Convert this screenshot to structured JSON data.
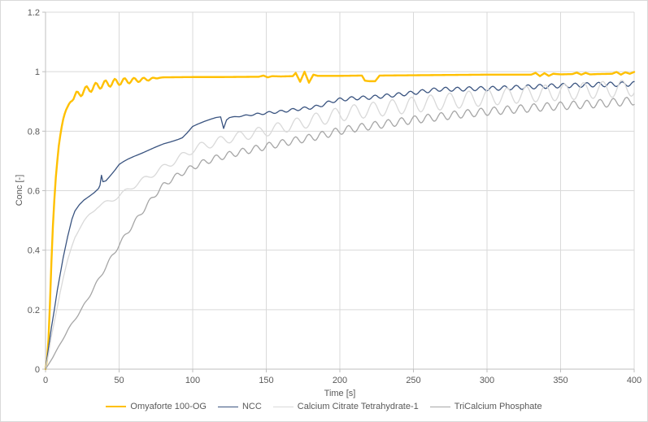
{
  "chart_data": {
    "type": "line",
    "title": "",
    "xlabel": "Time [s]",
    "ylabel": "Conc [-]",
    "xlim": [
      0,
      400
    ],
    "ylim": [
      0,
      1.2
    ],
    "grid": true,
    "legend_position": "bottom",
    "x_ticks": [
      {
        "v": 0,
        "label": "0"
      },
      {
        "v": 50,
        "label": "50"
      },
      {
        "v": 100,
        "label": "100"
      },
      {
        "v": 150,
        "label": "150"
      },
      {
        "v": 200,
        "label": "200"
      },
      {
        "v": 250,
        "label": "250"
      },
      {
        "v": 300,
        "label": "300"
      },
      {
        "v": 350,
        "label": "350"
      },
      {
        "v": 400,
        "label": "400"
      }
    ],
    "y_ticks": [
      {
        "v": 0,
        "label": "0"
      },
      {
        "v": 0.2,
        "label": "0.2"
      },
      {
        "v": 0.4,
        "label": "0.4"
      },
      {
        "v": 0.6,
        "label": "0.6"
      },
      {
        "v": 0.8,
        "label": "0.8"
      },
      {
        "v": 1,
        "label": "1"
      },
      {
        "v": 1.2,
        "label": "1.2"
      }
    ],
    "style": {
      "background": "#FFFFFF",
      "gridline_color": "#D9D9D9",
      "axis_color": "#BFBFBF",
      "text_color": "#595959"
    },
    "series": [
      {
        "name": "Omyaforte 100-OG",
        "color": "#FFC000",
        "width": 2.4,
        "oscillation": {
          "period": 6.5,
          "phase": 0,
          "amp": [
            [
              0,
              0
            ],
            [
              17,
              0
            ],
            [
              21,
              0.013
            ],
            [
              48,
              0.012
            ],
            [
              70,
              0.005
            ],
            [
              78,
              0
            ],
            [
              400,
              0
            ]
          ]
        },
        "points": [
          [
            0,
            0
          ],
          [
            1,
            0.03
          ],
          [
            2,
            0.1
          ],
          [
            3,
            0.22
          ],
          [
            4,
            0.36
          ],
          [
            5,
            0.48
          ],
          [
            6,
            0.57
          ],
          [
            7,
            0.645
          ],
          [
            8,
            0.7
          ],
          [
            9,
            0.75
          ],
          [
            10,
            0.785
          ],
          [
            11,
            0.815
          ],
          [
            12,
            0.84
          ],
          [
            13,
            0.858
          ],
          [
            14,
            0.872
          ],
          [
            15,
            0.882
          ],
          [
            16,
            0.892
          ],
          [
            18,
            0.905
          ],
          [
            20,
            0.916
          ],
          [
            23,
            0.927
          ],
          [
            26,
            0.935
          ],
          [
            30,
            0.943
          ],
          [
            34,
            0.95
          ],
          [
            38,
            0.956
          ],
          [
            42,
            0.96
          ],
          [
            46,
            0.963
          ],
          [
            50,
            0.966
          ],
          [
            55,
            0.969
          ],
          [
            60,
            0.971
          ],
          [
            65,
            0.973
          ],
          [
            70,
            0.975
          ],
          [
            75,
            0.978
          ],
          [
            80,
            0.981
          ],
          [
            100,
            0.982
          ],
          [
            120,
            0.982
          ],
          [
            145,
            0.983
          ],
          [
            148,
            0.987
          ],
          [
            151,
            0.981
          ],
          [
            154,
            0.985
          ],
          [
            160,
            0.984
          ],
          [
            168,
            0.985
          ],
          [
            170,
            0.996
          ],
          [
            173,
            0.966
          ],
          [
            176,
            1.0
          ],
          [
            179,
            0.963
          ],
          [
            182,
            0.99
          ],
          [
            185,
            0.986
          ],
          [
            200,
            0.986
          ],
          [
            215,
            0.987
          ],
          [
            217,
            0.97
          ],
          [
            220,
            0.968
          ],
          [
            224,
            0.968
          ],
          [
            227,
            0.987
          ],
          [
            250,
            0.988
          ],
          [
            300,
            0.99
          ],
          [
            330,
            0.99
          ],
          [
            333,
            0.996
          ],
          [
            336,
            0.985
          ],
          [
            339,
            0.995
          ],
          [
            342,
            0.986
          ],
          [
            345,
            0.993
          ],
          [
            350,
            0.991
          ],
          [
            358,
            0.992
          ],
          [
            361,
            0.997
          ],
          [
            364,
            0.99
          ],
          [
            367,
            0.996
          ],
          [
            370,
            0.991
          ],
          [
            375,
            0.992
          ],
          [
            385,
            0.993
          ],
          [
            388,
            0.999
          ],
          [
            391,
            0.99
          ],
          [
            394,
            0.998
          ],
          [
            397,
            0.993
          ],
          [
            400,
            0.999
          ]
        ]
      },
      {
        "name": "NCC",
        "color": "#3A5480",
        "width": 1.3,
        "oscillation": {
          "period": 8,
          "phase": 1.7,
          "amp": [
            [
              0,
              0
            ],
            [
              120,
              0
            ],
            [
              150,
              0.004
            ],
            [
              200,
              0.006
            ],
            [
              280,
              0.007
            ],
            [
              400,
              0.008
            ]
          ]
        },
        "points": [
          [
            0,
            0
          ],
          [
            2,
            0.07
          ],
          [
            4,
            0.14
          ],
          [
            6,
            0.2
          ],
          [
            8,
            0.265
          ],
          [
            10,
            0.32
          ],
          [
            12,
            0.375
          ],
          [
            15,
            0.445
          ],
          [
            18,
            0.505
          ],
          [
            20,
            0.532
          ],
          [
            23,
            0.553
          ],
          [
            26,
            0.568
          ],
          [
            30,
            0.582
          ],
          [
            33,
            0.593
          ],
          [
            36,
            0.607
          ],
          [
            37,
            0.618
          ],
          [
            38,
            0.652
          ],
          [
            39,
            0.63
          ],
          [
            41,
            0.633
          ],
          [
            44,
            0.65
          ],
          [
            47,
            0.668
          ],
          [
            50,
            0.688
          ],
          [
            53,
            0.698
          ],
          [
            56,
            0.706
          ],
          [
            60,
            0.715
          ],
          [
            65,
            0.725
          ],
          [
            70,
            0.736
          ],
          [
            75,
            0.747
          ],
          [
            80,
            0.757
          ],
          [
            85,
            0.764
          ],
          [
            90,
            0.772
          ],
          [
            93,
            0.778
          ],
          [
            96,
            0.793
          ],
          [
            100,
            0.816
          ],
          [
            104,
            0.825
          ],
          [
            108,
            0.833
          ],
          [
            112,
            0.84
          ],
          [
            116,
            0.846
          ],
          [
            119,
            0.848
          ],
          [
            121,
            0.809
          ],
          [
            123,
            0.838
          ],
          [
            125,
            0.846
          ],
          [
            130,
            0.849
          ],
          [
            140,
            0.855
          ],
          [
            150,
            0.861
          ],
          [
            160,
            0.866
          ],
          [
            170,
            0.873
          ],
          [
            180,
            0.879
          ],
          [
            185,
            0.883
          ],
          [
            190,
            0.892
          ],
          [
            195,
            0.901
          ],
          [
            200,
            0.906
          ],
          [
            210,
            0.911
          ],
          [
            220,
            0.913
          ],
          [
            230,
            0.918
          ],
          [
            240,
            0.923
          ],
          [
            250,
            0.929
          ],
          [
            260,
            0.936
          ],
          [
            268,
            0.941
          ],
          [
            280,
            0.941
          ],
          [
            290,
            0.943
          ],
          [
            300,
            0.943
          ],
          [
            310,
            0.945
          ],
          [
            320,
            0.947
          ],
          [
            330,
            0.949
          ],
          [
            340,
            0.951
          ],
          [
            350,
            0.953
          ],
          [
            360,
            0.954
          ],
          [
            370,
            0.956
          ],
          [
            380,
            0.957
          ],
          [
            390,
            0.958
          ],
          [
            400,
            0.959
          ]
        ]
      },
      {
        "name": "Calcium Citrate Tetrahydrate-1",
        "color": "#D9D9D9",
        "width": 1.3,
        "oscillation": {
          "period": 13,
          "phase": 0.8,
          "amp": [
            [
              0,
              0
            ],
            [
              30,
              0.004
            ],
            [
              60,
              0.008
            ],
            [
              100,
              0.013
            ],
            [
              150,
              0.018
            ],
            [
              200,
              0.024
            ],
            [
              260,
              0.027
            ],
            [
              400,
              0.028
            ]
          ]
        },
        "points": [
          [
            0,
            0
          ],
          [
            2,
            0.05
          ],
          [
            4,
            0.11
          ],
          [
            6,
            0.16
          ],
          [
            8,
            0.21
          ],
          [
            10,
            0.26
          ],
          [
            12,
            0.305
          ],
          [
            15,
            0.365
          ],
          [
            18,
            0.415
          ],
          [
            20,
            0.445
          ],
          [
            23,
            0.472
          ],
          [
            26,
            0.495
          ],
          [
            30,
            0.52
          ],
          [
            35,
            0.545
          ],
          [
            40,
            0.558
          ],
          [
            45,
            0.568
          ],
          [
            50,
            0.582
          ],
          [
            55,
            0.6
          ],
          [
            60,
            0.616
          ],
          [
            65,
            0.632
          ],
          [
            70,
            0.647
          ],
          [
            75,
            0.662
          ],
          [
            80,
            0.677
          ],
          [
            85,
            0.692
          ],
          [
            90,
            0.707
          ],
          [
            95,
            0.722
          ],
          [
            100,
            0.738
          ],
          [
            105,
            0.748
          ],
          [
            110,
            0.755
          ],
          [
            115,
            0.762
          ],
          [
            120,
            0.769
          ],
          [
            125,
            0.776
          ],
          [
            130,
            0.781
          ],
          [
            140,
            0.791
          ],
          [
            150,
            0.801
          ],
          [
            160,
            0.812
          ],
          [
            170,
            0.823
          ],
          [
            180,
            0.835
          ],
          [
            190,
            0.846
          ],
          [
            200,
            0.857
          ],
          [
            210,
            0.865
          ],
          [
            220,
            0.871
          ],
          [
            230,
            0.877
          ],
          [
            240,
            0.883
          ],
          [
            250,
            0.889
          ],
          [
            260,
            0.894
          ],
          [
            270,
            0.899
          ],
          [
            280,
            0.904
          ],
          [
            290,
            0.909
          ],
          [
            300,
            0.913
          ],
          [
            310,
            0.917
          ],
          [
            320,
            0.921
          ],
          [
            330,
            0.925
          ],
          [
            340,
            0.928
          ],
          [
            350,
            0.931
          ],
          [
            360,
            0.934
          ],
          [
            370,
            0.937
          ],
          [
            380,
            0.94
          ],
          [
            390,
            0.943
          ],
          [
            400,
            0.946
          ]
        ]
      },
      {
        "name": "TriCalcium Phosphate",
        "color": "#A6A6A6",
        "width": 1.3,
        "oscillation": {
          "period": 9,
          "phase": 2.4,
          "amp": [
            [
              0,
              0
            ],
            [
              25,
              0.004
            ],
            [
              60,
              0.008
            ],
            [
              120,
              0.011
            ],
            [
              200,
              0.013
            ],
            [
              400,
              0.014
            ]
          ]
        },
        "points": [
          [
            0,
            0
          ],
          [
            5,
            0.04
          ],
          [
            10,
            0.085
          ],
          [
            15,
            0.13
          ],
          [
            20,
            0.168
          ],
          [
            25,
            0.205
          ],
          [
            30,
            0.248
          ],
          [
            35,
            0.292
          ],
          [
            40,
            0.335
          ],
          [
            45,
            0.378
          ],
          [
            50,
            0.418
          ],
          [
            55,
            0.455
          ],
          [
            60,
            0.49
          ],
          [
            65,
            0.525
          ],
          [
            70,
            0.558
          ],
          [
            75,
            0.59
          ],
          [
            80,
            0.617
          ],
          [
            85,
            0.636
          ],
          [
            90,
            0.652
          ],
          [
            95,
            0.666
          ],
          [
            100,
            0.679
          ],
          [
            105,
            0.69
          ],
          [
            110,
            0.7
          ],
          [
            115,
            0.708
          ],
          [
            120,
            0.715
          ],
          [
            125,
            0.721
          ],
          [
            130,
            0.727
          ],
          [
            140,
            0.738
          ],
          [
            150,
            0.749
          ],
          [
            160,
            0.759
          ],
          [
            170,
            0.769
          ],
          [
            180,
            0.778
          ],
          [
            190,
            0.789
          ],
          [
            200,
            0.801
          ],
          [
            210,
            0.81
          ],
          [
            220,
            0.817
          ],
          [
            230,
            0.824
          ],
          [
            240,
            0.831
          ],
          [
            250,
            0.838
          ],
          [
            260,
            0.844
          ],
          [
            270,
            0.85
          ],
          [
            280,
            0.856
          ],
          [
            290,
            0.861
          ],
          [
            300,
            0.866
          ],
          [
            310,
            0.87
          ],
          [
            320,
            0.874
          ],
          [
            330,
            0.878
          ],
          [
            340,
            0.882
          ],
          [
            350,
            0.885
          ],
          [
            360,
            0.888
          ],
          [
            370,
            0.891
          ],
          [
            380,
            0.894
          ],
          [
            390,
            0.898
          ],
          [
            400,
            0.902
          ]
        ]
      }
    ]
  }
}
